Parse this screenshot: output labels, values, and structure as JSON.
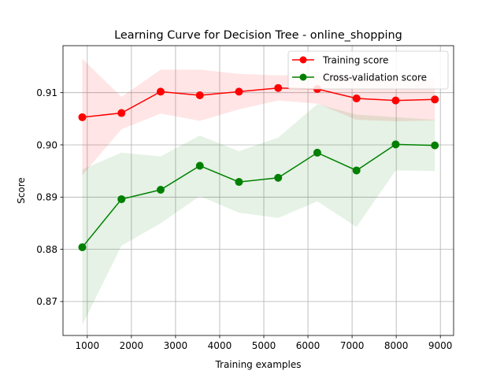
{
  "chart_data": {
    "type": "line",
    "title": "Learning Curve for Decision Tree - online_shopping",
    "xlabel": "Training examples",
    "ylabel": "Score",
    "xlim": [
      450,
      9300
    ],
    "ylim": [
      0.8635,
      0.919
    ],
    "xticks": [
      1000,
      2000,
      3000,
      4000,
      5000,
      6000,
      7000,
      8000,
      9000
    ],
    "yticks": [
      0.87,
      0.88,
      0.89,
      0.9,
      0.91
    ],
    "ytick_labels": [
      "0.87",
      "0.88",
      "0.89",
      "0.90",
      "0.91"
    ],
    "grid": true,
    "legend": "top-right",
    "x": [
      887,
      1775,
      2662,
      3550,
      4437,
      5325,
      6212,
      7100,
      7987,
      8875
    ],
    "series": [
      {
        "name": "Training score",
        "color": "#ff0000",
        "fill_color": "#ff0000",
        "values": [
          0.9053,
          0.9061,
          0.9102,
          0.9095,
          0.9102,
          0.9109,
          0.9107,
          0.9089,
          0.9085,
          0.9087
        ],
        "upper": [
          0.9165,
          0.9092,
          0.9144,
          0.9144,
          0.9136,
          0.9133,
          0.9135,
          0.913,
          0.9125,
          0.9127
        ],
        "lower": [
          0.8942,
          0.903,
          0.906,
          0.9046,
          0.9068,
          0.9085,
          0.9079,
          0.9048,
          0.9045,
          0.9047
        ]
      },
      {
        "name": "Cross-validation score",
        "color": "#008000",
        "fill_color": "#008000",
        "values": [
          0.8804,
          0.8896,
          0.8914,
          0.896,
          0.8929,
          0.8937,
          0.8985,
          0.8951,
          0.9001,
          0.8999
        ],
        "upper": [
          0.8953,
          0.8985,
          0.8978,
          0.9018,
          0.8988,
          0.9014,
          0.9078,
          0.9058,
          0.9053,
          0.9048
        ],
        "lower": [
          0.8655,
          0.8807,
          0.885,
          0.8902,
          0.887,
          0.886,
          0.8892,
          0.8843,
          0.8951,
          0.895
        ]
      }
    ]
  }
}
